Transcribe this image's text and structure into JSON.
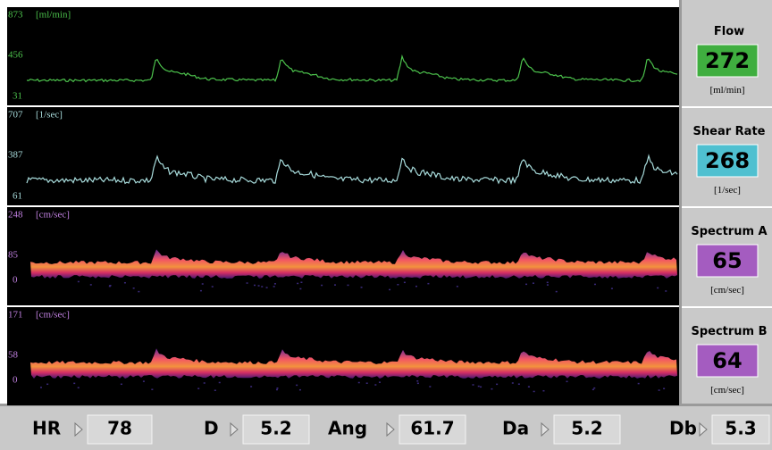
{
  "panels": [
    {
      "scale_top": "873",
      "scale_mid": "456",
      "scale_bottom": "31",
      "unit": "[ml/min]",
      "label": "Flow",
      "value": "272",
      "value_unit": "[ml/min]"
    },
    {
      "scale_top": "707",
      "scale_mid": "387",
      "scale_bottom": "61",
      "unit": "[1/sec]",
      "label": "Shear Rate",
      "value": "268",
      "value_unit": "[1/sec]"
    },
    {
      "scale_top": "248",
      "scale_mid": "85",
      "scale_bottom": "0",
      "unit": "[cm/sec]",
      "label": "Spectrum A",
      "value": "65",
      "value_unit": "[cm/sec]"
    },
    {
      "scale_top": "171",
      "scale_mid": "58",
      "scale_bottom": "0",
      "unit": "[cm/sec]",
      "label": "Spectrum B",
      "value": "64",
      "value_unit": "[cm/sec]"
    }
  ],
  "footer": [
    {
      "label": "HR",
      "value": "78"
    },
    {
      "label": "D",
      "value": "5.2"
    },
    {
      "label": "Ang",
      "value": "61.7"
    },
    {
      "label": "Da",
      "value": "5.2"
    },
    {
      "label": "Db",
      "value": "5.3"
    }
  ]
}
